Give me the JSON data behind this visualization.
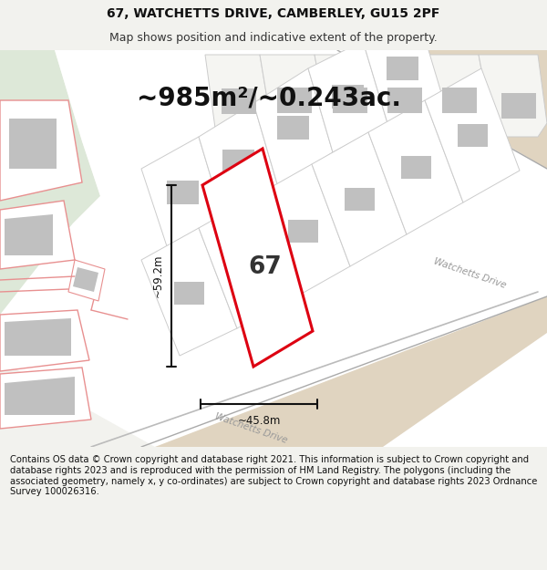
{
  "title": "67, WATCHETTS DRIVE, CAMBERLEY, GU15 2PF",
  "subtitle": "Map shows position and indicative extent of the property.",
  "area_text": "~985m²/~0.243ac.",
  "label_67": "67",
  "dim_width": "~45.8m",
  "dim_height": "~59.2m",
  "road_label1": "Watchetts Drive",
  "road_label2": "Watchetts Drive",
  "footer": "Contains OS data © Crown copyright and database right 2021. This information is subject to Crown copyright and database rights 2023 and is reproduced with the permission of HM Land Registry. The polygons (including the associated geometry, namely x, y co-ordinates) are subject to Crown copyright and database rights 2023 Ordnance Survey 100026316.",
  "bg_color": "#f2f2ee",
  "bg_green": "#dde8d8",
  "bg_road": "#e0d4c0",
  "map_bg": "#ffffff",
  "red_color": "#dd0011",
  "pink_color": "#e89090",
  "gray_color": "#c0c0c0",
  "line_color": "#cccccc",
  "title_fontsize": 10,
  "subtitle_fontsize": 9,
  "area_fontsize": 20,
  "footer_fontsize": 7.2
}
